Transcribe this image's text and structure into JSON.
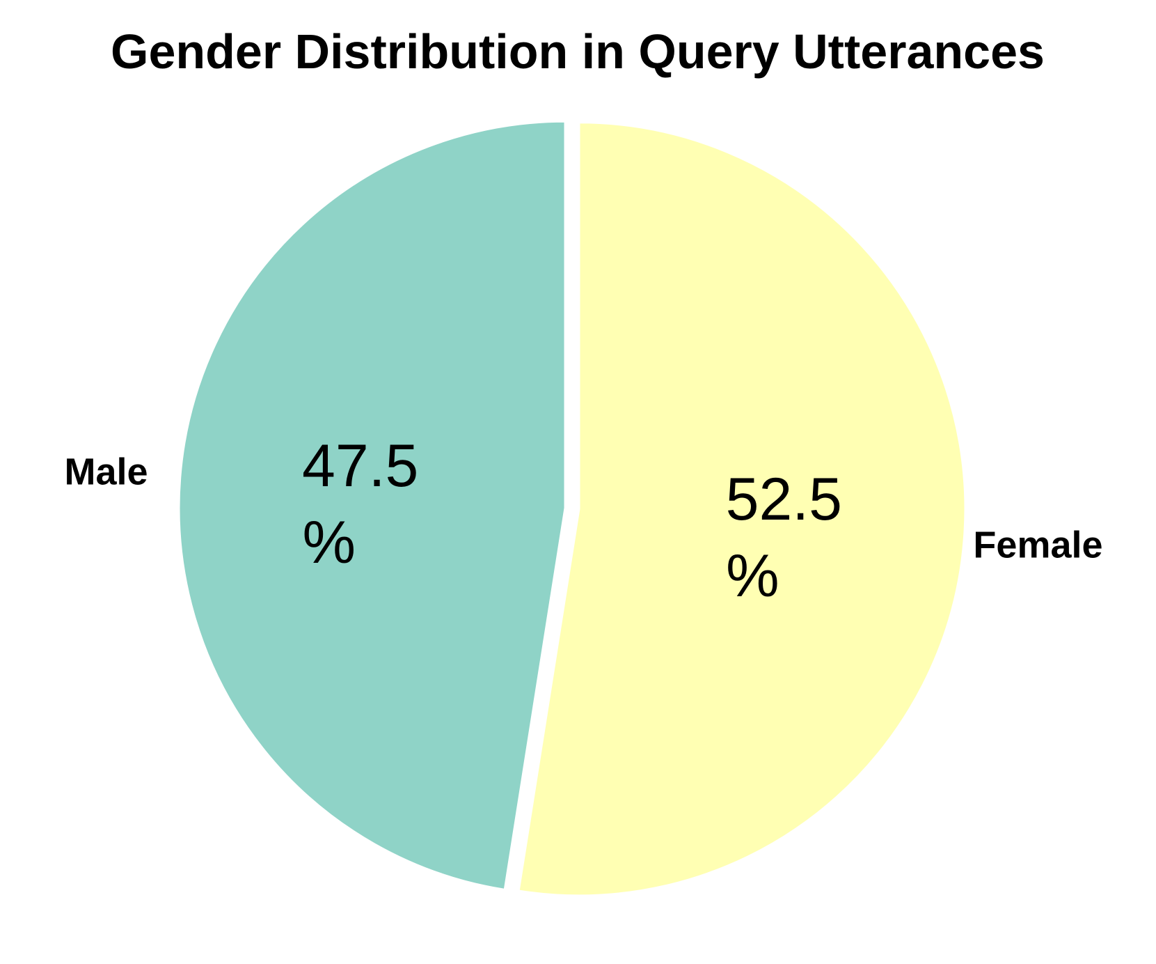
{
  "chart_data": {
    "type": "pie",
    "title": "Gender Distribution in Query Utterances",
    "slices": [
      {
        "label": "Male",
        "value": 47.5,
        "value_text": "47.5",
        "unit": "%",
        "color": "#8fd3c7"
      },
      {
        "label": "Female",
        "value": 52.5,
        "value_text": "52.5",
        "unit": "%",
        "color": "#ffffb3"
      }
    ],
    "start_angle_deg": 90,
    "direction": "counterclockwise",
    "exploded": true,
    "edge_color": "#ffffff",
    "legend": "none"
  }
}
